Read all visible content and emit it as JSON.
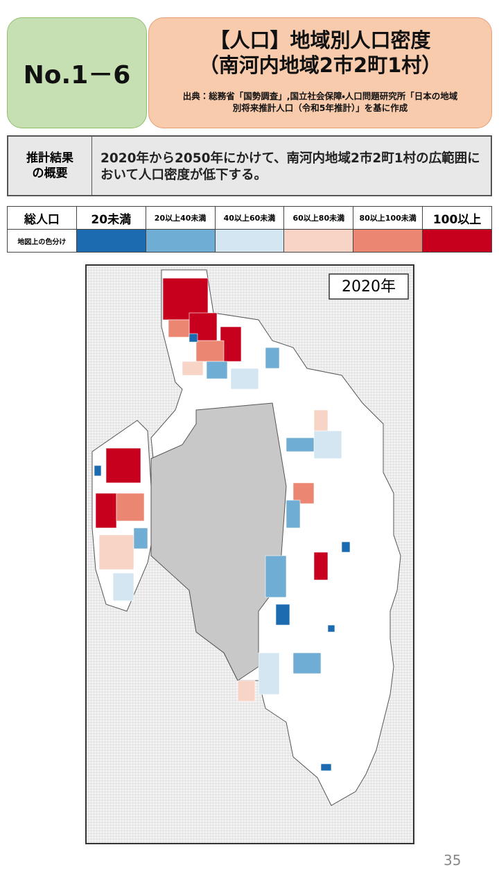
{
  "header": {
    "badge": "No.1－6",
    "title_lines": [
      "【人口】地域別人口密度",
      "（南河内地域2市2町1村）"
    ],
    "source_lines": [
      "出典：総務省「国勢調査」,国立社会保障・人口問題研究所「日本の地域",
      "別将来推計人口（令和5年推計）」を基に作成"
    ]
  },
  "summary": {
    "label_lines": [
      "推計結果",
      "の概要"
    ],
    "text": "2020年から2050年にかけて、南河内地域2市2町1村の広範囲において人口密度が低下する。"
  },
  "legend": {
    "header": "総人口",
    "row_label": "地図上の色分け",
    "items": [
      {
        "label": "20未満",
        "color": "#1c6bb0"
      },
      {
        "label": "20以上40未満",
        "color": "#6fadd4"
      },
      {
        "label": "40以上60未満",
        "color": "#d3e6f2"
      },
      {
        "label": "60以上80未満",
        "color": "#f7d4c6"
      },
      {
        "label": "80以上100未満",
        "color": "#eb8672"
      },
      {
        "label": "100以上",
        "color": "#c6001d"
      }
    ]
  },
  "map": {
    "year_label": "2020年"
  },
  "footer": {
    "page_number": "35"
  }
}
